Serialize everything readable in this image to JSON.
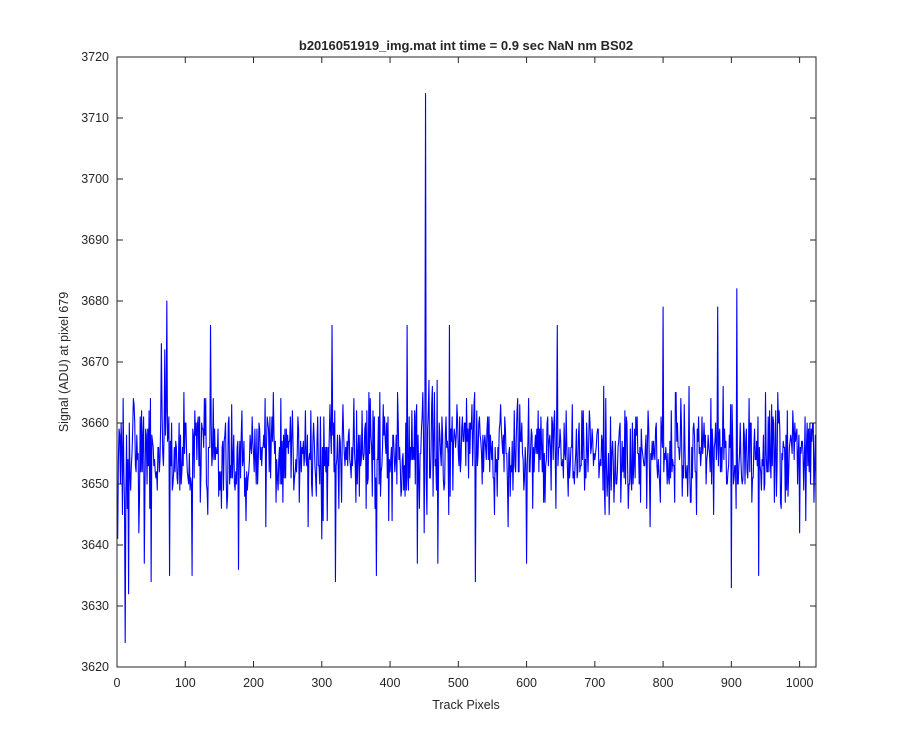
{
  "chart_data": {
    "type": "line",
    "title": "b2016051919_img.mat int time = 0.9 sec  NaN nm BS02",
    "xlabel": "Track Pixels",
    "ylabel": "Signal (ADU) at pixel 679",
    "xlim": [
      0,
      1024
    ],
    "ylim": [
      3620,
      3720
    ],
    "xticks": [
      0,
      100,
      200,
      300,
      400,
      500,
      600,
      700,
      800,
      900,
      1000
    ],
    "yticks": [
      3620,
      3630,
      3640,
      3650,
      3660,
      3670,
      3680,
      3690,
      3700,
      3710,
      3720
    ],
    "grid": false,
    "series": [
      {
        "color": "#0000ff",
        "x_start": 1,
        "x_step": 1,
        "length": 1024,
        "baseline": 3655,
        "noise_range": [
          3641,
          3669
        ],
        "notable_points": [
          {
            "x": 1,
            "y": 3641
          },
          {
            "x": 5,
            "y": 3650
          },
          {
            "x": 8,
            "y": 3645
          },
          {
            "x": 10,
            "y": 3652
          },
          {
            "x": 12,
            "y": 3624
          },
          {
            "x": 15,
            "y": 3646
          },
          {
            "x": 17,
            "y": 3632
          },
          {
            "x": 22,
            "y": 3655
          },
          {
            "x": 40,
            "y": 3637
          },
          {
            "x": 50,
            "y": 3634
          },
          {
            "x": 65,
            "y": 3673
          },
          {
            "x": 70,
            "y": 3672
          },
          {
            "x": 73,
            "y": 3680
          },
          {
            "x": 77,
            "y": 3635
          },
          {
            "x": 110,
            "y": 3635
          },
          {
            "x": 137,
            "y": 3676
          },
          {
            "x": 178,
            "y": 3636
          },
          {
            "x": 280,
            "y": 3643
          },
          {
            "x": 300,
            "y": 3641
          },
          {
            "x": 315,
            "y": 3676
          },
          {
            "x": 320,
            "y": 3634
          },
          {
            "x": 380,
            "y": 3635
          },
          {
            "x": 425,
            "y": 3676
          },
          {
            "x": 440,
            "y": 3637
          },
          {
            "x": 450,
            "y": 3642
          },
          {
            "x": 452,
            "y": 3714
          },
          {
            "x": 454,
            "y": 3645
          },
          {
            "x": 470,
            "y": 3637
          },
          {
            "x": 487,
            "y": 3676
          },
          {
            "x": 525,
            "y": 3634
          },
          {
            "x": 600,
            "y": 3637
          },
          {
            "x": 645,
            "y": 3676
          },
          {
            "x": 800,
            "y": 3679
          },
          {
            "x": 880,
            "y": 3679
          },
          {
            "x": 900,
            "y": 3633
          },
          {
            "x": 908,
            "y": 3682
          },
          {
            "x": 940,
            "y": 3635
          },
          {
            "x": 1024,
            "y": 3647
          }
        ]
      }
    ]
  }
}
